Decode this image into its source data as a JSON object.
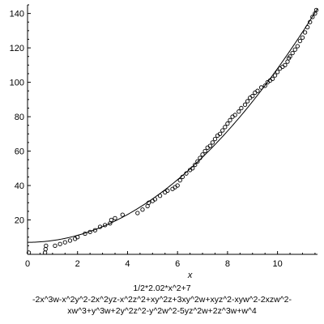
{
  "chart_data": {
    "type": "scatter",
    "xlabel": "x",
    "xlim": [
      0,
      11.6
    ],
    "ylim": [
      0,
      145
    ],
    "xticks": [
      0,
      2,
      4,
      6,
      8,
      10
    ],
    "yticks": [
      20,
      40,
      60,
      80,
      100,
      120,
      140
    ],
    "curve_expression": "1/2*2.02*x^2+7",
    "points": [
      [
        0.05,
        1
      ],
      [
        0.7,
        1
      ],
      [
        0.72,
        3
      ],
      [
        0.74,
        5
      ],
      [
        1.1,
        5
      ],
      [
        1.3,
        6
      ],
      [
        1.5,
        7
      ],
      [
        1.7,
        8
      ],
      [
        1.9,
        9
      ],
      [
        2.0,
        10
      ],
      [
        2.3,
        12
      ],
      [
        2.5,
        13
      ],
      [
        2.7,
        14
      ],
      [
        2.9,
        16
      ],
      [
        3.1,
        17
      ],
      [
        3.3,
        18
      ],
      [
        3.35,
        20
      ],
      [
        3.5,
        21
      ],
      [
        3.8,
        23
      ],
      [
        4.4,
        24
      ],
      [
        4.6,
        26
      ],
      [
        4.8,
        28
      ],
      [
        4.85,
        30
      ],
      [
        5.0,
        31
      ],
      [
        5.1,
        32
      ],
      [
        5.3,
        34
      ],
      [
        5.5,
        36
      ],
      [
        5.6,
        37
      ],
      [
        5.8,
        38
      ],
      [
        5.9,
        39
      ],
      [
        6.0,
        40
      ],
      [
        6.1,
        43
      ],
      [
        6.2,
        45
      ],
      [
        6.35,
        47
      ],
      [
        6.5,
        49
      ],
      [
        6.6,
        50
      ],
      [
        6.7,
        52
      ],
      [
        6.8,
        54
      ],
      [
        6.9,
        56
      ],
      [
        7.0,
        58
      ],
      [
        7.1,
        60
      ],
      [
        7.2,
        62
      ],
      [
        7.3,
        63
      ],
      [
        7.4,
        65
      ],
      [
        7.5,
        67
      ],
      [
        7.6,
        69
      ],
      [
        7.7,
        70
      ],
      [
        7.8,
        72
      ],
      [
        7.9,
        74
      ],
      [
        8.0,
        76
      ],
      [
        8.1,
        78
      ],
      [
        8.2,
        80
      ],
      [
        8.3,
        81
      ],
      [
        8.45,
        83
      ],
      [
        8.55,
        85
      ],
      [
        8.7,
        87
      ],
      [
        8.8,
        89
      ],
      [
        8.9,
        91
      ],
      [
        9.0,
        92
      ],
      [
        9.1,
        94
      ],
      [
        9.2,
        95
      ],
      [
        9.35,
        97
      ],
      [
        9.5,
        98
      ],
      [
        9.6,
        100
      ],
      [
        9.7,
        101
      ],
      [
        9.8,
        102
      ],
      [
        9.9,
        104
      ],
      [
        10.0,
        106
      ],
      [
        10.1,
        108
      ],
      [
        10.2,
        109
      ],
      [
        10.3,
        110
      ],
      [
        10.4,
        112
      ],
      [
        10.45,
        114
      ],
      [
        10.5,
        115
      ],
      [
        10.6,
        117
      ],
      [
        10.7,
        119
      ],
      [
        10.8,
        121
      ],
      [
        10.9,
        124
      ],
      [
        11.0,
        126
      ],
      [
        11.1,
        129
      ],
      [
        11.2,
        132
      ],
      [
        11.3,
        135
      ],
      [
        11.4,
        138
      ],
      [
        11.5,
        140
      ],
      [
        11.55,
        142
      ]
    ]
  },
  "caption": {
    "line1": "1/2*2.02*x^2+7",
    "line2": "-2x^3w-x^2y^2-2x^2yz-x^2z^2+xy^2z+3xy^2w+xyz^2-xyw^2-2xzw^2-",
    "line3": "xw^3+y^3w+2y^2z^2-y^2w^2-5yz^2w+2z^3w+w^4"
  }
}
